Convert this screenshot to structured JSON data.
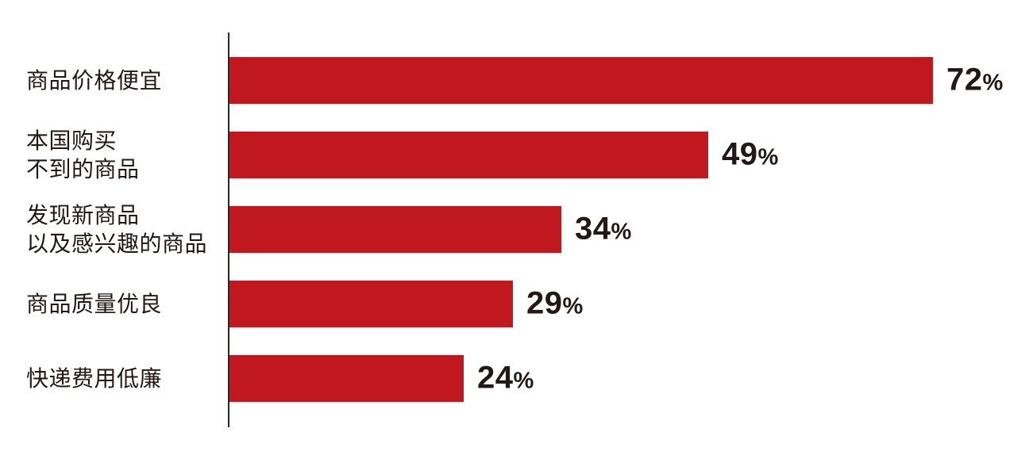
{
  "chart_data": {
    "type": "bar",
    "orientation": "horizontal",
    "unit": "%",
    "categories": [
      "商品价格便宜",
      "本国购买不到的商品",
      "发现新商品以及感兴趣的商品",
      "商品质量优良",
      "快递费用低廉"
    ],
    "values": [
      72,
      49,
      34,
      29,
      24
    ],
    "rows": [
      {
        "label_lines": [
          "商品价格便宜"
        ],
        "value": 72
      },
      {
        "label_lines": [
          "本国购买",
          "不到的商品"
        ],
        "value": 49
      },
      {
        "label_lines": [
          "发现新商品",
          "以及感兴趣的商品"
        ],
        "value": 34
      },
      {
        "label_lines": [
          "商品质量优良"
        ],
        "value": 29
      },
      {
        "label_lines": [
          "快递费用低廉"
        ],
        "value": 24
      }
    ],
    "xlim": [
      0,
      72
    ],
    "bar_color": "#c1181f",
    "text_color": "#231815",
    "axis_line_color": "#2f2726",
    "grid": false,
    "legend": false,
    "title": ""
  }
}
